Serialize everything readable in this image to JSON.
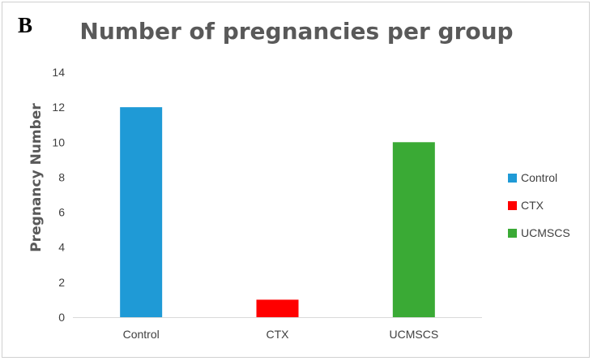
{
  "panel_label": "B",
  "chart_data": {
    "type": "bar",
    "title": "Number of pregnancies per group",
    "xlabel": "",
    "ylabel": "Pregnancy Number",
    "categories": [
      "Control",
      "CTX",
      "UCMSCS"
    ],
    "values": [
      12,
      1,
      10
    ],
    "colors": [
      "#1f9ad6",
      "#ff0000",
      "#3aaa35"
    ],
    "ylim": [
      0,
      14
    ],
    "yticks": [
      0,
      2,
      4,
      6,
      8,
      10,
      12,
      14
    ],
    "grid": false,
    "legend": {
      "placement": "right",
      "entries": [
        "Control",
        "CTX",
        "UCMSCS"
      ]
    },
    "axis_color": "#d9d9d9"
  }
}
